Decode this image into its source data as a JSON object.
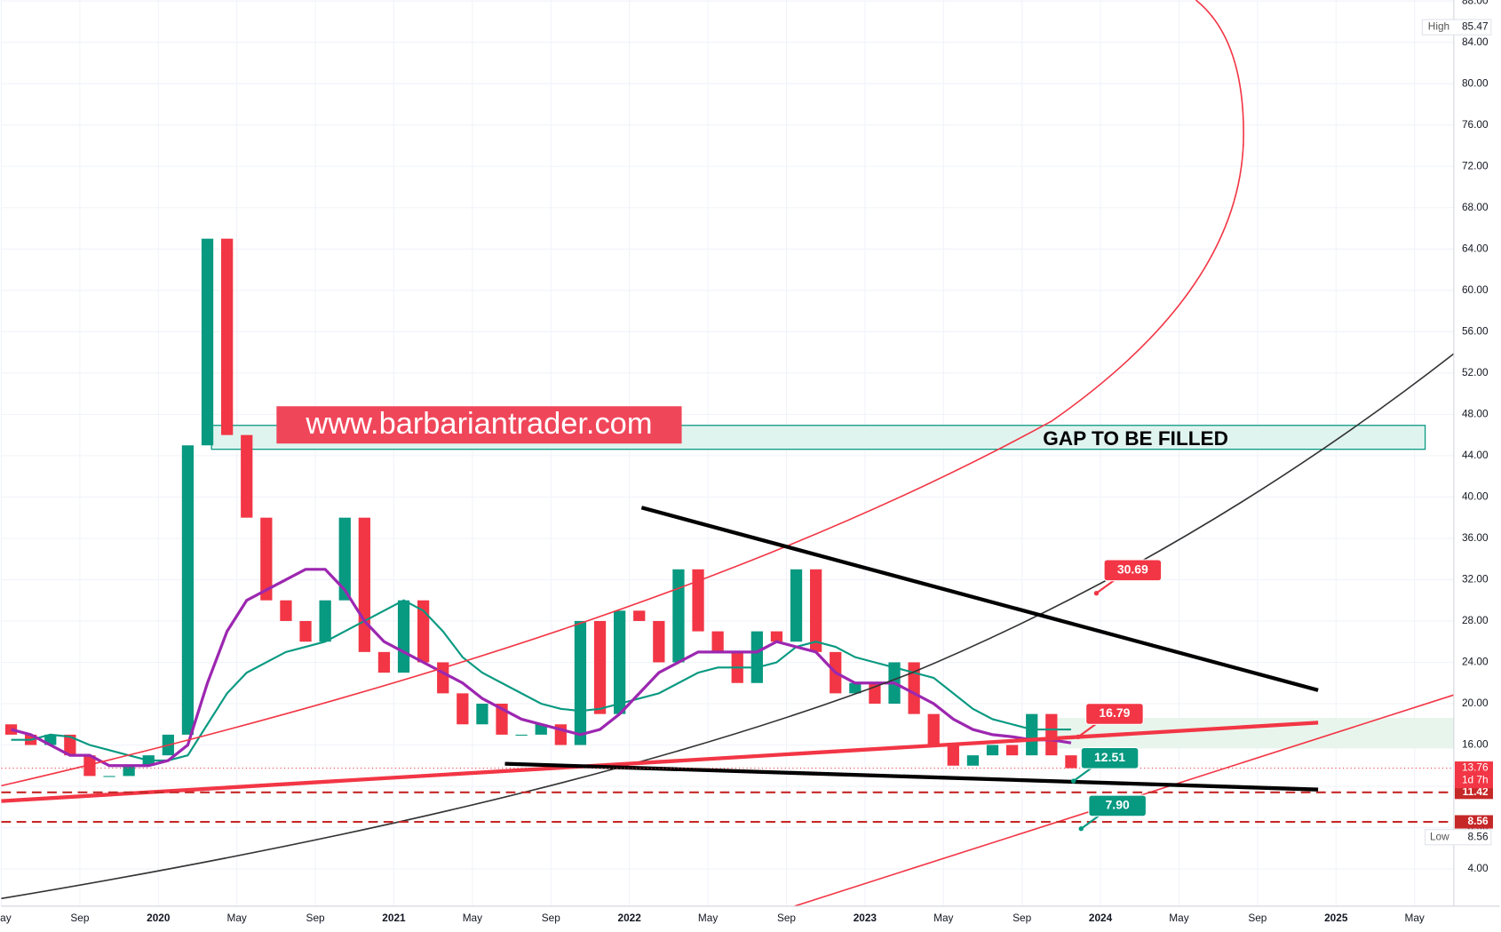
{
  "chart_data": {
    "type": "candlestick",
    "x": [
      "2019-05",
      "2019-06",
      "2019-07",
      "2019-08",
      "2019-09",
      "2019-10",
      "2019-11",
      "2019-12",
      "2020-01",
      "2020-02",
      "2020-03",
      "2020-04",
      "2020-05",
      "2020-06",
      "2020-07",
      "2020-08",
      "2020-09",
      "2020-10",
      "2020-11",
      "2020-12",
      "2021-01",
      "2021-02",
      "2021-03",
      "2021-04",
      "2021-05",
      "2021-06",
      "2021-07",
      "2021-08",
      "2021-09",
      "2021-10",
      "2021-11",
      "2021-12",
      "2022-01",
      "2022-02",
      "2022-03",
      "2022-04",
      "2022-05",
      "2022-06",
      "2022-07",
      "2022-08",
      "2022-09",
      "2022-10",
      "2022-11",
      "2022-12",
      "2023-01",
      "2023-02",
      "2023-03",
      "2023-04",
      "2023-05",
      "2023-06",
      "2023-07",
      "2023-08",
      "2023-09",
      "2023-10",
      "2023-11"
    ],
    "open": [
      18,
      17,
      16,
      17,
      15,
      13,
      13,
      14,
      15,
      17,
      45,
      65,
      46,
      38,
      30,
      28,
      26,
      30,
      38,
      25,
      23,
      30,
      24,
      21,
      18,
      20,
      17,
      17,
      18,
      16,
      28,
      19,
      29,
      28,
      24,
      33,
      27,
      25,
      22,
      27,
      26,
      33,
      25,
      21,
      22,
      20,
      24,
      19,
      16,
      14,
      15,
      16,
      15,
      19,
      15
    ],
    "high": 85.47,
    "low": 8.56,
    "close": [
      17,
      16,
      17,
      15,
      13,
      13,
      14,
      15,
      17,
      45,
      65,
      46,
      38,
      30,
      28,
      26,
      30,
      38,
      25,
      23,
      30,
      24,
      21,
      18,
      20,
      17,
      17,
      18,
      16,
      28,
      19,
      29,
      28,
      24,
      33,
      27,
      25,
      22,
      27,
      26,
      33,
      25,
      21,
      22,
      20,
      24,
      19,
      16,
      14,
      15,
      16,
      15,
      19,
      15,
      13.76
    ],
    "up_color": "#089981",
    "down_color": "#f23645",
    "ma_fast": {
      "color": "#9c27b0",
      "values": [
        17.5,
        17,
        16,
        15,
        15,
        14,
        14,
        14,
        14.5,
        16,
        22,
        27,
        30,
        31,
        32,
        33,
        33,
        31,
        28,
        26,
        25,
        24,
        23,
        22,
        20.5,
        19.5,
        18.5,
        18,
        17.5,
        17,
        17.5,
        19,
        21,
        23,
        24,
        25,
        25,
        25,
        25,
        26,
        25.5,
        25,
        23,
        22,
        22,
        22,
        21,
        20,
        18.5,
        17.5,
        17,
        16.8,
        16.5,
        16.5,
        16.2
      ]
    },
    "ma_slow": {
      "color": "#089981",
      "values": [
        16.5,
        16.5,
        17,
        16.8,
        16,
        15.5,
        15,
        14.5,
        14.5,
        15,
        18,
        21,
        23,
        24,
        25,
        25.5,
        26,
        27,
        28,
        29,
        30,
        29,
        27,
        24.5,
        23,
        22,
        21,
        20,
        19.5,
        19.3,
        19.5,
        20,
        20.5,
        21,
        22,
        23,
        23.5,
        23.5,
        23.5,
        24,
        25.5,
        26,
        25.5,
        24.5,
        24,
        23.5,
        23,
        22.5,
        21,
        19.5,
        18.5,
        18,
        17.5,
        17.5,
        17.5
      ]
    },
    "xlim": [
      "2019-05",
      "2025-07"
    ],
    "xticks": [
      {
        "value": "2019-05",
        "label": "May"
      },
      {
        "value": "2019-09",
        "label": "Sep"
      },
      {
        "value": "2020-01",
        "label": "2020"
      },
      {
        "value": "2020-05",
        "label": "May"
      },
      {
        "value": "2020-09",
        "label": "Sep"
      },
      {
        "value": "2021-01",
        "label": "2021"
      },
      {
        "value": "2021-05",
        "label": "May"
      },
      {
        "value": "2021-09",
        "label": "Sep"
      },
      {
        "value": "2022-01",
        "label": "2022"
      },
      {
        "value": "2022-05",
        "label": "May"
      },
      {
        "value": "2022-09",
        "label": "Sep"
      },
      {
        "value": "2023-01",
        "label": "2023"
      },
      {
        "value": "2023-05",
        "label": "May"
      },
      {
        "value": "2023-09",
        "label": "Sep"
      },
      {
        "value": "2024-01",
        "label": "2024"
      },
      {
        "value": "2024-05",
        "label": "May"
      },
      {
        "value": "2024-09",
        "label": "Sep"
      },
      {
        "value": "2025-01",
        "label": "2025"
      },
      {
        "value": "2025-05",
        "label": "May"
      }
    ],
    "ylim": [
      0.4,
      88.1
    ],
    "yticks": [
      {
        "value": 4,
        "label": "4.00"
      },
      {
        "value": 8,
        "label": "8.00"
      },
      {
        "value": 12,
        "label": "12.00"
      },
      {
        "value": 16,
        "label": "16.00"
      },
      {
        "value": 20,
        "label": "20.00"
      },
      {
        "value": 24,
        "label": "24.00"
      },
      {
        "value": 28,
        "label": "28.00"
      },
      {
        "value": 32,
        "label": "32.00"
      },
      {
        "value": 36,
        "label": "36.00"
      },
      {
        "value": 40,
        "label": "40.00"
      },
      {
        "value": 44,
        "label": "44.00"
      },
      {
        "value": 48,
        "label": "48.00"
      },
      {
        "value": 52,
        "label": "52.00"
      },
      {
        "value": 56,
        "label": "56.00"
      },
      {
        "value": 60,
        "label": "60.00"
      },
      {
        "value": 64,
        "label": "64.00"
      },
      {
        "value": 68,
        "label": "68.00"
      },
      {
        "value": 72,
        "label": "72.00"
      },
      {
        "value": 76,
        "label": "76.00"
      },
      {
        "value": 80,
        "label": "80.00"
      },
      {
        "value": 84,
        "label": "84.00"
      },
      {
        "value": 88,
        "label": "88.00"
      }
    ],
    "grid": true,
    "watermark": "www.barbariantrader.com",
    "zone_label": "GAP TO BE FILLED",
    "callouts": [
      {
        "value": 30.69,
        "color": "#f23645"
      },
      {
        "value": 16.79,
        "color": "#f23645"
      },
      {
        "value": 12.51,
        "color": "#089981"
      },
      {
        "value": 7.9,
        "label": "7.90",
        "color": "#089981"
      }
    ],
    "last_price": 13.76,
    "countdown": "1d 7h",
    "levels": [
      11.42,
      8.56
    ],
    "high_label": "High",
    "low_label": "Low"
  }
}
